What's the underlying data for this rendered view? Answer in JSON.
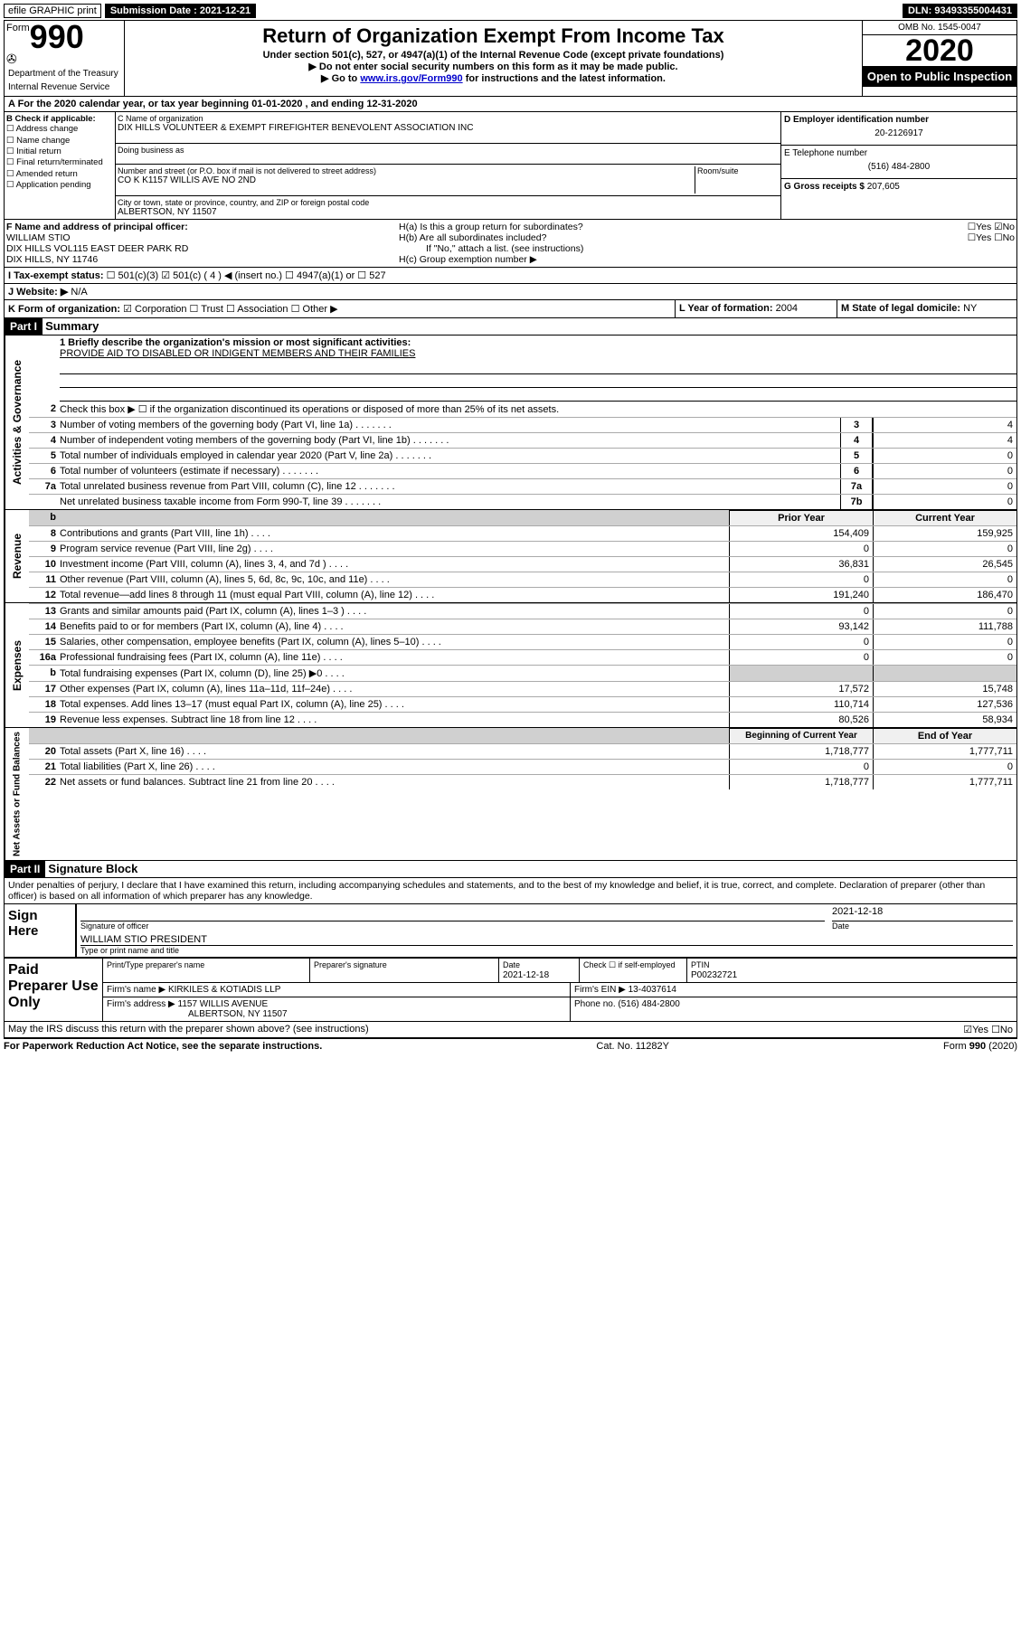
{
  "topbar": {
    "efile": "efile GRAPHIC print",
    "sub_label": "Submission Date : 2021-12-21",
    "dln": "DLN: 93493355004431"
  },
  "header": {
    "form_word": "Form",
    "form_num": "990",
    "dept1": "Department of the Treasury",
    "dept2": "Internal Revenue Service",
    "title": "Return of Organization Exempt From Income Tax",
    "sub1": "Under section 501(c), 527, or 4947(a)(1) of the Internal Revenue Code (except private foundations)",
    "sub2": "▶ Do not enter social security numbers on this form as it may be made public.",
    "sub3_pre": "▶ Go to ",
    "sub3_link": "www.irs.gov/Form990",
    "sub3_post": " for instructions and the latest information.",
    "omb": "OMB No. 1545-0047",
    "year": "2020",
    "open": "Open to Public Inspection"
  },
  "rowA": "A For the 2020 calendar year, or tax year beginning 01-01-2020   , and ending 12-31-2020",
  "B": {
    "title": "B Check if applicable:",
    "items": [
      "☐ Address change",
      "☐ Name change",
      "☐ Initial return",
      "☐ Final return/terminated",
      "☐ Amended return",
      "☐ Application pending"
    ]
  },
  "C": {
    "name_label": "C Name of organization",
    "name": "DIX HILLS VOLUNTEER & EXEMPT FIREFIGHTER BENEVOLENT ASSOCIATION INC",
    "dba_label": "Doing business as",
    "addr_label": "Number and street (or P.O. box if mail is not delivered to street address)",
    "room_label": "Room/suite",
    "addr": "CO K K1157 WILLIS AVE NO 2ND",
    "city_label": "City or town, state or province, country, and ZIP or foreign postal code",
    "city": "ALBERTSON, NY  11507"
  },
  "D": {
    "label": "D Employer identification number",
    "val": "20-2126917"
  },
  "E": {
    "label": "E Telephone number",
    "val": "(516) 484-2800"
  },
  "G": {
    "label": "G Gross receipts $",
    "val": "207,605"
  },
  "F": {
    "label": "F Name and address of principal officer:",
    "name": "WILLIAM STIO",
    "addr1": "DIX HILLS VOL115 EAST DEER PARK RD",
    "addr2": "DIX HILLS, NY  11746"
  },
  "H": {
    "a": "H(a)  Is this a group return for subordinates?",
    "a_ans": "☐Yes ☑No",
    "b": "H(b)  Are all subordinates included?",
    "b_ans": "☐Yes ☐No",
    "b_note": "If \"No,\" attach a list. (see instructions)",
    "c": "H(c)  Group exemption number ▶"
  },
  "I": {
    "label": "I  Tax-exempt status:",
    "opts": "☐ 501(c)(3)   ☑ 501(c) ( 4 ) ◀ (insert no.)   ☐ 4947(a)(1) or   ☐ 527"
  },
  "J": {
    "label": "J  Website: ▶",
    "val": "N/A"
  },
  "K": {
    "label": "K Form of organization:",
    "opts": "☑ Corporation  ☐ Trust  ☐ Association  ☐ Other ▶"
  },
  "L": {
    "label": "L Year of formation:",
    "val": "2004"
  },
  "M": {
    "label": "M State of legal domicile:",
    "val": "NY"
  },
  "part1": {
    "hdr": "Part I",
    "title": "Summary"
  },
  "mission": {
    "q": "1  Briefly describe the organization's mission or most significant activities:",
    "text": "PROVIDE AID TO DISABLED OR INDIGENT MEMBERS AND THEIR FAMILIES"
  },
  "line2": "Check this box ▶ ☐  if the organization discontinued its operations or disposed of more than 25% of its net assets.",
  "gov_lines": [
    {
      "n": "3",
      "d": "Number of voting members of the governing body (Part VI, line 1a)",
      "box": "3",
      "v": "4"
    },
    {
      "n": "4",
      "d": "Number of independent voting members of the governing body (Part VI, line 1b)",
      "box": "4",
      "v": "4"
    },
    {
      "n": "5",
      "d": "Total number of individuals employed in calendar year 2020 (Part V, line 2a)",
      "box": "5",
      "v": "0"
    },
    {
      "n": "6",
      "d": "Total number of volunteers (estimate if necessary)",
      "box": "6",
      "v": "0"
    },
    {
      "n": "7a",
      "d": "Total unrelated business revenue from Part VIII, column (C), line 12",
      "box": "7a",
      "v": "0"
    },
    {
      "n": "",
      "d": "Net unrelated business taxable income from Form 990-T, line 39",
      "box": "7b",
      "v": "0"
    }
  ],
  "colhead1": "Prior Year",
  "colhead2": "Current Year",
  "rev_lines": [
    {
      "n": "8",
      "d": "Contributions and grants (Part VIII, line 1h)",
      "v1": "154,409",
      "v2": "159,925"
    },
    {
      "n": "9",
      "d": "Program service revenue (Part VIII, line 2g)",
      "v1": "0",
      "v2": "0"
    },
    {
      "n": "10",
      "d": "Investment income (Part VIII, column (A), lines 3, 4, and 7d )",
      "v1": "36,831",
      "v2": "26,545"
    },
    {
      "n": "11",
      "d": "Other revenue (Part VIII, column (A), lines 5, 6d, 8c, 9c, 10c, and 11e)",
      "v1": "0",
      "v2": "0"
    },
    {
      "n": "12",
      "d": "Total revenue—add lines 8 through 11 (must equal Part VIII, column (A), line 12)",
      "v1": "191,240",
      "v2": "186,470"
    }
  ],
  "exp_lines": [
    {
      "n": "13",
      "d": "Grants and similar amounts paid (Part IX, column (A), lines 1–3 )",
      "v1": "0",
      "v2": "0"
    },
    {
      "n": "14",
      "d": "Benefits paid to or for members (Part IX, column (A), line 4)",
      "v1": "93,142",
      "v2": "111,788"
    },
    {
      "n": "15",
      "d": "Salaries, other compensation, employee benefits (Part IX, column (A), lines 5–10)",
      "v1": "0",
      "v2": "0"
    },
    {
      "n": "16a",
      "d": "Professional fundraising fees (Part IX, column (A), line 11e)",
      "v1": "0",
      "v2": "0"
    },
    {
      "n": "b",
      "d": "Total fundraising expenses (Part IX, column (D), line 25) ▶0",
      "v1": "",
      "v2": "",
      "grey": true
    },
    {
      "n": "17",
      "d": "Other expenses (Part IX, column (A), lines 11a–11d, 11f–24e)",
      "v1": "17,572",
      "v2": "15,748"
    },
    {
      "n": "18",
      "d": "Total expenses. Add lines 13–17 (must equal Part IX, column (A), line 25)",
      "v1": "110,714",
      "v2": "127,536"
    },
    {
      "n": "19",
      "d": "Revenue less expenses. Subtract line 18 from line 12",
      "v1": "80,526",
      "v2": "58,934"
    }
  ],
  "colhead3": "Beginning of Current Year",
  "colhead4": "End of Year",
  "net_lines": [
    {
      "n": "20",
      "d": "Total assets (Part X, line 16)",
      "v1": "1,718,777",
      "v2": "1,777,711"
    },
    {
      "n": "21",
      "d": "Total liabilities (Part X, line 26)",
      "v1": "0",
      "v2": "0"
    },
    {
      "n": "22",
      "d": "Net assets or fund balances. Subtract line 21 from line 20",
      "v1": "1,718,777",
      "v2": "1,777,711"
    }
  ],
  "part2": {
    "hdr": "Part II",
    "title": "Signature Block"
  },
  "perjury": "Under penalties of perjury, I declare that I have examined this return, including accompanying schedules and statements, and to the best of my knowledge and belief, it is true, correct, and complete. Declaration of preparer (other than officer) is based on all information of which preparer has any knowledge.",
  "sign": {
    "here": "Sign Here",
    "sig_label": "Signature of officer",
    "date_label": "Date",
    "date": "2021-12-18",
    "name": "WILLIAM STIO PRESIDENT",
    "name_label": "Type or print name and title"
  },
  "prep": {
    "title": "Paid Preparer Use Only",
    "h1": "Print/Type preparer's name",
    "h2": "Preparer's signature",
    "h3": "Date",
    "h3v": "2021-12-18",
    "h4": "Check ☐ if self-employed",
    "h5": "PTIN",
    "h5v": "P00232721",
    "firm_label": "Firm's name    ▶",
    "firm": "KIRKILES & KOTIADIS LLP",
    "ein_label": "Firm's EIN ▶",
    "ein": "13-4037614",
    "addr_label": "Firm's address ▶",
    "addr1": "1157 WILLIS AVENUE",
    "addr2": "ALBERTSON, NY  11507",
    "phone_label": "Phone no.",
    "phone": "(516) 484-2800"
  },
  "discuss": {
    "q": "May the IRS discuss this return with the preparer shown above? (see instructions)",
    "ans": "☑Yes ☐No"
  },
  "footer": {
    "left": "For Paperwork Reduction Act Notice, see the separate instructions.",
    "mid": "Cat. No. 11282Y",
    "right": "Form 990 (2020)"
  },
  "vlabels": {
    "gov": "Activities & Governance",
    "rev": "Revenue",
    "exp": "Expenses",
    "net": "Net Assets or Fund Balances"
  }
}
